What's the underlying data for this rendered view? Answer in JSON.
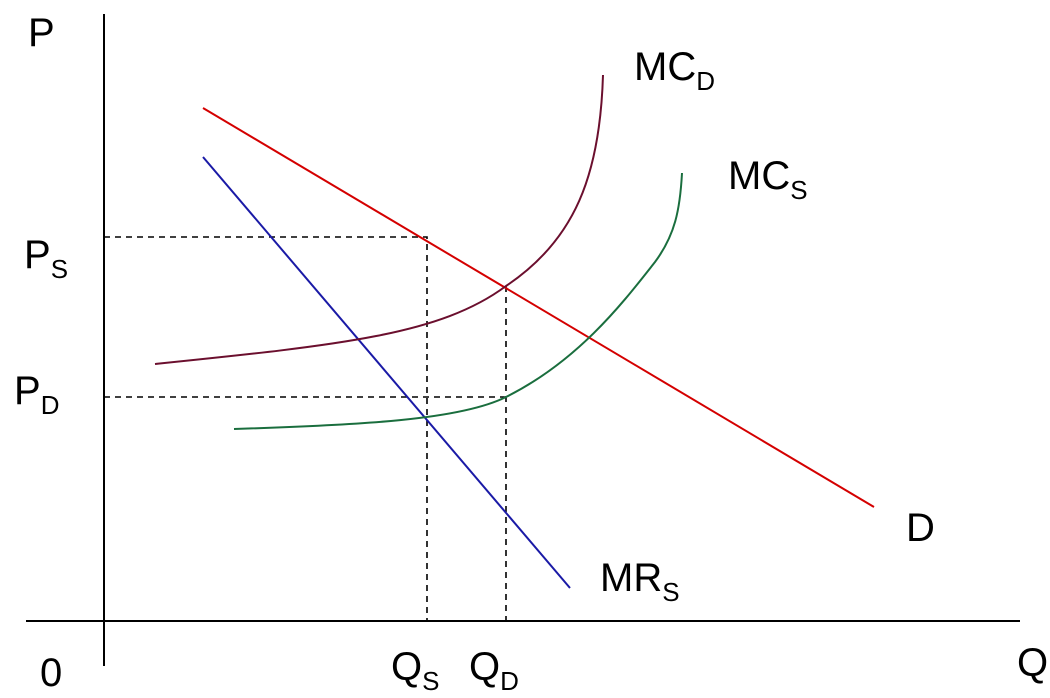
{
  "diagram": {
    "axis_labels": {
      "price": "P",
      "quantity": "Q",
      "origin": "0"
    },
    "price_levels": [
      {
        "main": "P",
        "sub": "S"
      },
      {
        "main": "P",
        "sub": "D"
      }
    ],
    "quantity_levels": [
      {
        "main": "Q",
        "sub": "S"
      },
      {
        "main": "Q",
        "sub": "D"
      }
    ],
    "curves": {
      "mc_d": {
        "main": "MC",
        "sub": "D",
        "color": "#6b0f2e"
      },
      "mc_s": {
        "main": "MC",
        "sub": "S",
        "color": "#1a6e3e"
      },
      "demand": {
        "main": "D",
        "sub": "",
        "color": "#d40000"
      },
      "mr_s": {
        "main": "MR",
        "sub": "S",
        "color": "#1a1aa6"
      }
    },
    "axis_color": "#000000",
    "guide_color": "#000000"
  }
}
